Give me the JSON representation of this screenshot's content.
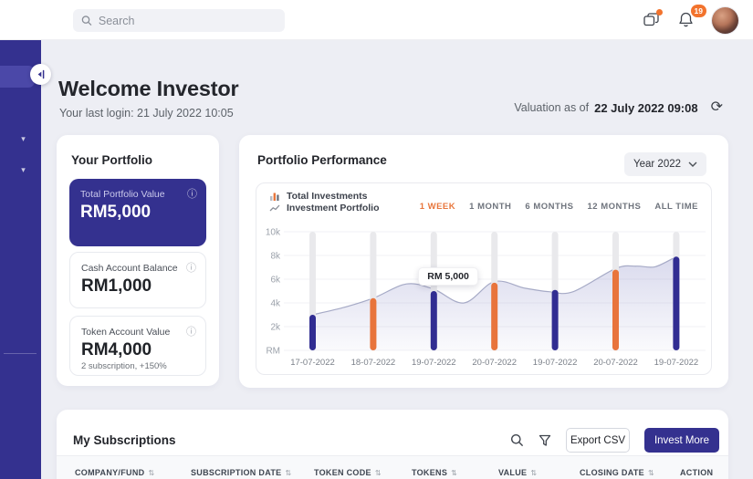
{
  "topbar": {
    "search_placeholder": "Search",
    "notification_count": "19"
  },
  "header": {
    "title": "Welcome Investor",
    "last_login": "Your last login: 21 July 2022 10:05",
    "valuation_label": "Valuation as of",
    "valuation_value": "22 July 2022 09:08"
  },
  "portfolio": {
    "title": "Your Portfolio",
    "cards": [
      {
        "label": "Total Portfolio Value",
        "value": "RM5,000"
      },
      {
        "label": "Cash Account Balance",
        "value": "RM1,000"
      },
      {
        "label": "Token Account Value",
        "value": "RM4,000",
        "note": "2 subscription, +150%"
      }
    ]
  },
  "performance": {
    "title": "Portfolio Performance",
    "year_filter": "Year 2022",
    "legend": [
      "Total Investments",
      "Investment Portfolio"
    ],
    "ranges": [
      "1 WEEK",
      "1 MONTH",
      "6 MONTHS",
      "12 MONTHS",
      "ALL TIME"
    ],
    "active_range": "1 WEEK",
    "tooltip": "RM 5,000"
  },
  "chart_data": {
    "type": "bar",
    "title": "Portfolio Performance",
    "categories": [
      "17-07-2022",
      "18-07-2022",
      "19-07-2022",
      "20-07-2022",
      "19-07-2022",
      "20-07-2022",
      "19-07-2022"
    ],
    "yticks": [
      {
        "label": "10k",
        "value": 10000
      },
      {
        "label": "8k",
        "value": 8000
      },
      {
        "label": "6k",
        "value": 6000
      },
      {
        "label": "4k",
        "value": 4000
      },
      {
        "label": "2k",
        "value": 2000
      },
      {
        "label": "RM",
        "value": 0
      }
    ],
    "ylim": [
      0,
      10000
    ],
    "grid": true,
    "legend_position": "top-left",
    "series": [
      {
        "name": "Total Investments",
        "type": "bar",
        "values": [
          3000,
          4400,
          5000,
          5700,
          5100,
          6800,
          7900
        ],
        "colors": [
          "#312D92",
          "#E8743C",
          "#312D92",
          "#E8743C",
          "#312D92",
          "#E8743C",
          "#312D92"
        ]
      },
      {
        "name": "Investment Portfolio",
        "type": "area",
        "points": [
          [
            0,
            3000
          ],
          [
            0.5,
            3600
          ],
          [
            1,
            4400
          ],
          [
            1.55,
            5600
          ],
          [
            2,
            5150
          ],
          [
            2.5,
            4000
          ],
          [
            3,
            5800
          ],
          [
            3.5,
            5250
          ],
          [
            3.9,
            4950
          ],
          [
            4.3,
            4950
          ],
          [
            5,
            6900
          ],
          [
            5.35,
            7100
          ],
          [
            5.65,
            7050
          ],
          [
            6,
            7900
          ]
        ]
      }
    ],
    "tooltip": {
      "text": "RM 5,000",
      "category_index": 2
    }
  },
  "subscriptions": {
    "title": "My Subscriptions",
    "export_label": "Export CSV",
    "invest_label": "Invest More",
    "columns": [
      {
        "label": "COMPANY/FUND",
        "sortable": true
      },
      {
        "label": "SUBSCRIPTION DATE",
        "sortable": true
      },
      {
        "label": "TOKEN CODE",
        "sortable": true
      },
      {
        "label": "TOKENS",
        "sortable": true
      },
      {
        "label": "VALUE",
        "sortable": true
      },
      {
        "label": "CLOSING DATE",
        "sortable": true
      },
      {
        "label": "ACTION",
        "sortable": false
      }
    ]
  },
  "colors": {
    "primary_indigo": "#34318F",
    "sidebar_active": "#4B48A8",
    "accent_orange": "#E8763C",
    "bar_blue": "#312D92",
    "bar_orange": "#E8743C",
    "badge_orange": "#F2732D",
    "track_gray": "#E9E9EC",
    "area_fill": "#6264B4"
  }
}
